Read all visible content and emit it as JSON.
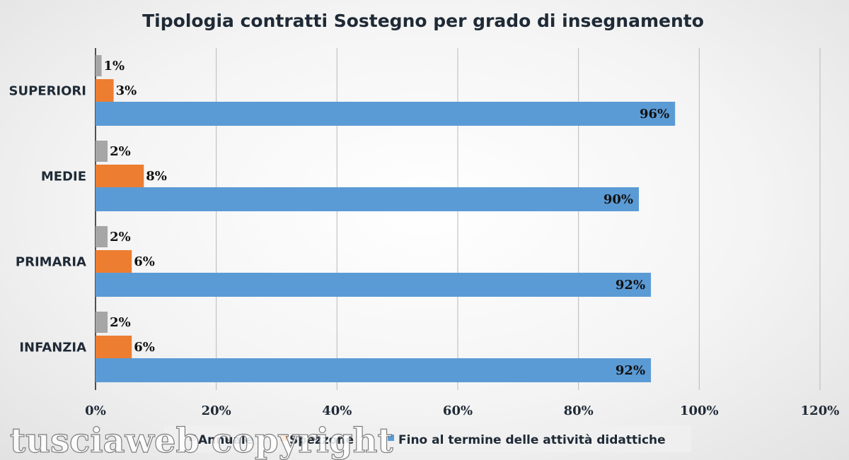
{
  "chart_data": {
    "type": "bar",
    "orientation": "horizontal",
    "title": "Tipologia contratti Sostegno per grado di insegnamento",
    "categories": [
      "SUPERIORI",
      "MEDIE",
      "PRIMARIA",
      "INFANZIA"
    ],
    "series": [
      {
        "name": "Annuale",
        "color": "#a6a6a6",
        "values": [
          1,
          2,
          2,
          2
        ],
        "labels": [
          "1%",
          "2%",
          "2%",
          "2%"
        ]
      },
      {
        "name": "Spezzone",
        "color": "#ed7d31",
        "values": [
          3,
          8,
          6,
          6
        ],
        "labels": [
          "3%",
          "8%",
          "6%",
          "6%"
        ]
      },
      {
        "name": "Fino al termine delle attività didattiche",
        "color": "#5b9bd5",
        "values": [
          96,
          90,
          92,
          92
        ],
        "labels": [
          "96%",
          "90%",
          "92%",
          "92%"
        ]
      }
    ],
    "xlim": [
      0,
      120
    ],
    "xticks": [
      0,
      20,
      40,
      60,
      80,
      100,
      120
    ],
    "xtick_labels": [
      "0%",
      "20%",
      "40%",
      "60%",
      "80%",
      "100%",
      "120%"
    ],
    "grid": true,
    "legend_position": "bottom"
  },
  "watermark": "tusciaweb copyright"
}
